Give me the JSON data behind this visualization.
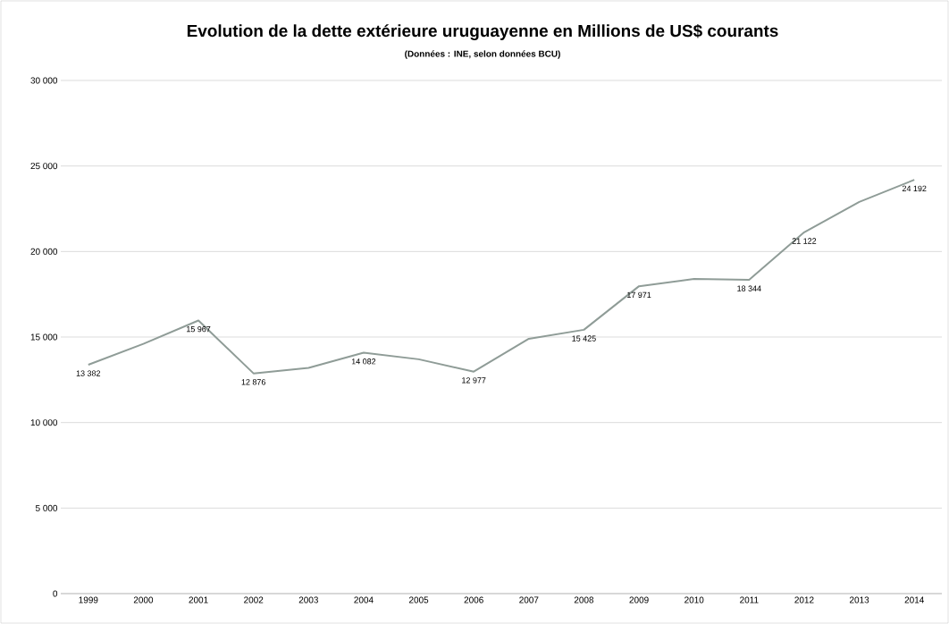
{
  "chart_data": {
    "type": "line",
    "title": "Evolution de la dette extérieure uruguayenne en Millions de US$ courants",
    "subtitle": "(Données : INE, selon données BCU)",
    "categories": [
      "1999",
      "2000",
      "2001",
      "2002",
      "2003",
      "2004",
      "2005",
      "2006",
      "2007",
      "2008",
      "2009",
      "2010",
      "2011",
      "2012",
      "2013",
      "2014"
    ],
    "values": [
      13382,
      14600,
      15967,
      12876,
      13200,
      14082,
      13700,
      12977,
      14900,
      15425,
      17971,
      18400,
      18344,
      21122,
      22900,
      24192
    ],
    "value_labels": [
      "13 382",
      null,
      "15 967",
      "12 876",
      null,
      "14 082",
      null,
      "12 977",
      null,
      "15 425",
      "17 971",
      null,
      "18 344",
      "21 122",
      null,
      "24 192"
    ],
    "color": "#8f9c97",
    "ylim": [
      0,
      30000
    ],
    "yticks": [
      0,
      {
        "value": 5000,
        "label": "5 000"
      },
      {
        "value": 10000,
        "label": "10 000"
      },
      {
        "value": 15000,
        "label": "15 000"
      },
      {
        "value": 20000,
        "label": "20 000"
      },
      {
        "value": 25000,
        "label": "25 000"
      },
      {
        "value": 30000,
        "label": "30 000"
      }
    ],
    "grid": "y",
    "marker": "none",
    "line_style": "solid"
  }
}
